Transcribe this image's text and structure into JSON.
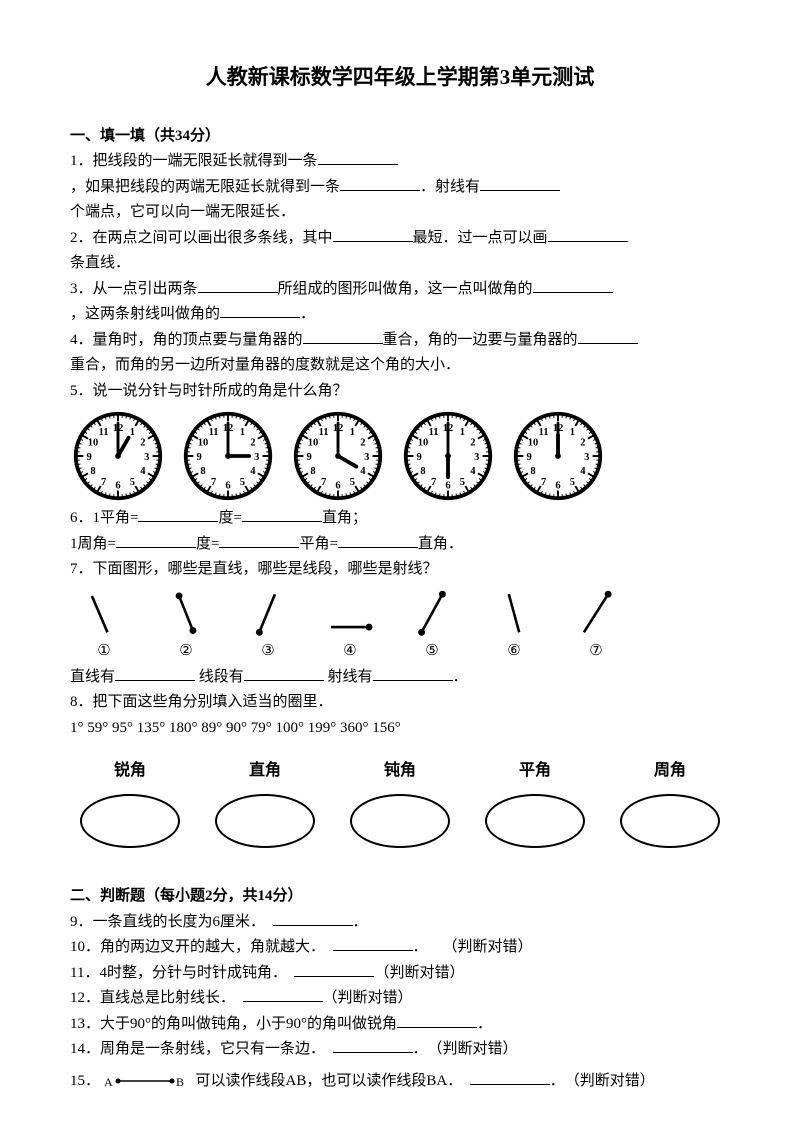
{
  "title": "人教新课标数学四年级上学期第3单元测试",
  "section1": {
    "head": "一、填一填（共34分）",
    "q1a": "1．把线段的一端无限延长就得到一条",
    "q1b": "，如果把线段的两端无限延长就得到一条",
    "q1c": "．射线有",
    "q1d": "个端点，它可以向一端无限延长．",
    "q2a": "2．在两点之间可以画出很多条线，其中",
    "q2b": "最短．过一点可以画",
    "q2c": "条直线．",
    "q3a": "3．从一点引出两条",
    "q3b": "所组成的图形叫做角，这一点叫做角的",
    "q3c": "，这两条射线叫做角的",
    "q3d": "．",
    "q4a": "4．量角时，角的顶点要与量角器的",
    "q4b": "重合，角的一边要与量角器的",
    "q4c": "重合，而角的另一边所对量角器的度数就是这个角的大小．",
    "q5": "5．说一说分针与时针所成的角是什么角？",
    "q6a": "6．1平角=",
    "q6b": "度=",
    "q6c": "直角；",
    "q6d": "1周角=",
    "q6e": "度=",
    "q6f": "平角=",
    "q6g": "直角．",
    "q7": "7．下面图形，哪些是直线，哪些是线段，哪些是射线？",
    "q7_zhi": "直线有",
    "q7_xian": "  线段有",
    "q7_she": "  射线有",
    "q7_end": "．",
    "q8a": "8．把下面这些角分别填入适当的圈里．",
    "q8b": "1°  59°  95°  135°  180°  89°  90°  79°  100°  199°  360°  156°",
    "angle_labels": [
      "锐角",
      "直角",
      "钝角",
      "平角",
      "周角"
    ],
    "circled": [
      "①",
      "②",
      "③",
      "④",
      "⑤",
      "⑥",
      "⑦"
    ],
    "clocks": [
      {
        "h": 1,
        "m": 0
      },
      {
        "h": 3,
        "m": 0
      },
      {
        "h": 4,
        "m": 0
      },
      {
        "h": 6,
        "m": 0
      },
      {
        "h": 12,
        "m": 0
      }
    ]
  },
  "section2": {
    "head": "二、判断题（每小题2分，共14分）",
    "q9": "9．一条直线的长度为6厘米．",
    "q9end": "．",
    "q10": "10．角的两边叉开的越大，角就越大．",
    "q10end": "．　　（判断对错）",
    "q11": "11．4时整，分针与时针成钝角．",
    "q11end": "（判断对错）",
    "q12": "12．直线总是比射线长．",
    "q12end": "（判断对错）",
    "q13": "13．大于90°的角叫做钝角，小于90°的角叫做锐角",
    "q13end": "．",
    "q14": "14．周角是一条射线，它只有一条边．",
    "q14end": "．　（判断对错）",
    "q15a": "15．",
    "q15b": "可以读作线段AB，也可以读作线段BA．",
    "q15end": "．　（判断对错）"
  }
}
